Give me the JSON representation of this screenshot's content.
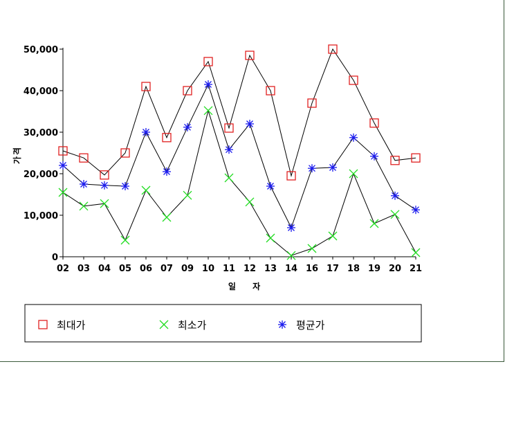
{
  "chart_data": {
    "type": "line",
    "xlabel": "일 자",
    "ylabel": "가격",
    "categories": [
      "02",
      "03",
      "04",
      "05",
      "06",
      "07",
      "09",
      "10",
      "11",
      "12",
      "13",
      "14",
      "16",
      "17",
      "18",
      "19",
      "20",
      "21"
    ],
    "ylim": [
      0,
      50000
    ],
    "yticks": [
      0,
      10000,
      20000,
      30000,
      40000,
      50000
    ],
    "ytick_labels": [
      "0",
      "10,000",
      "20,000",
      "30,000",
      "40,000",
      "50,000"
    ],
    "grid": false,
    "legend_position": "bottom",
    "series": [
      {
        "name": "최대가",
        "marker": "square",
        "color": "#e02020",
        "values": [
          25500,
          23800,
          19700,
          25000,
          41000,
          28700,
          40000,
          47000,
          31000,
          48500,
          40000,
          19500,
          37000,
          50000,
          42500,
          32200,
          23200,
          23800
        ]
      },
      {
        "name": "최소가",
        "marker": "x",
        "color": "#22dd22",
        "values": [
          15500,
          12200,
          12800,
          4000,
          16000,
          9500,
          14800,
          35200,
          19000,
          13200,
          4500,
          300,
          2000,
          5000,
          20000,
          8000,
          10200,
          1000
        ]
      },
      {
        "name": "평균가",
        "marker": "asterisk",
        "color": "#1a1aee",
        "values": [
          22000,
          17500,
          17200,
          17000,
          30000,
          20500,
          31200,
          41500,
          25800,
          32000,
          17000,
          7000,
          21300,
          21500,
          28700,
          24200,
          14700,
          11300
        ]
      }
    ]
  }
}
